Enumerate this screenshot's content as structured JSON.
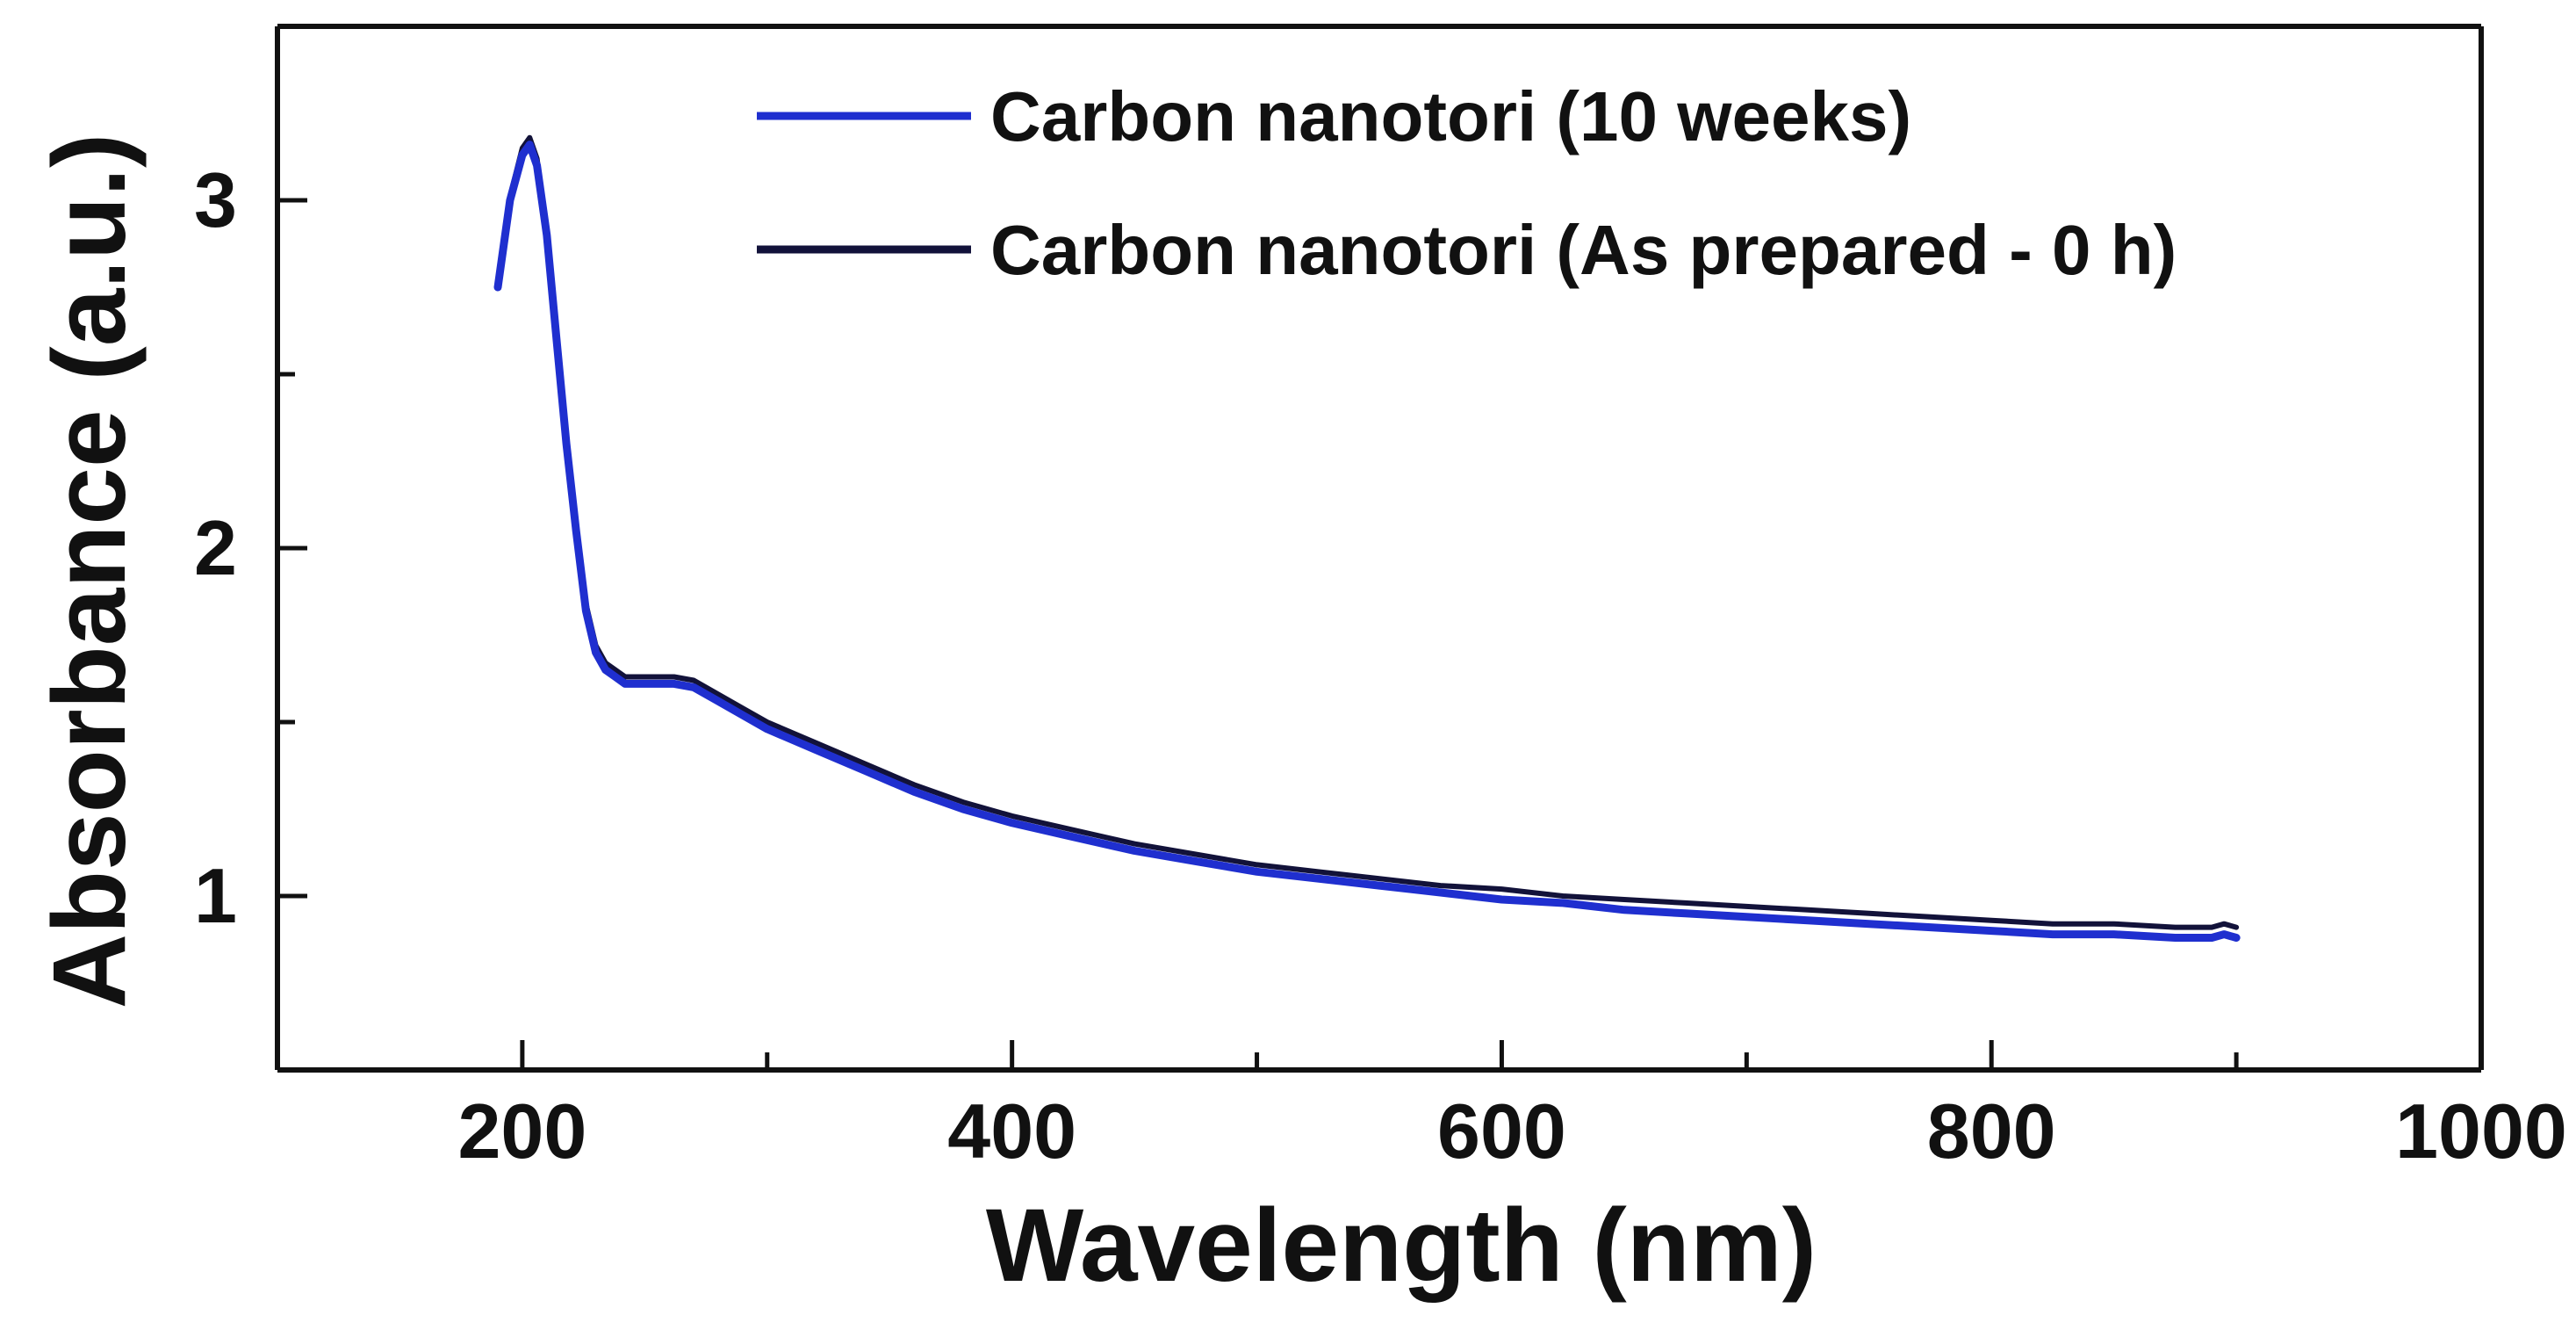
{
  "chart_data": {
    "type": "line",
    "title": "",
    "xlabel": "Wavelength (nm)",
    "ylabel": "Absorbance (a.u.)",
    "xlim": [
      100,
      1000
    ],
    "ylim": [
      0.5,
      3.5
    ],
    "x_ticks": [
      200,
      400,
      600,
      800,
      1000
    ],
    "x_minor_ticks": [
      300,
      500,
      700,
      900
    ],
    "y_ticks": [
      1,
      2,
      3
    ],
    "y_minor_ticks": [
      1.5,
      2.5
    ],
    "grid": false,
    "legend_position": "top-right",
    "series": [
      {
        "name": "Carbon nanotori (10 weeks)",
        "color": "#1f2fcf",
        "x": [
          190,
          195,
          200,
          203,
          206,
          210,
          214,
          218,
          222,
          226,
          230,
          234,
          238,
          242,
          248,
          255,
          262,
          270,
          280,
          290,
          300,
          320,
          340,
          360,
          380,
          400,
          425,
          450,
          475,
          500,
          525,
          550,
          575,
          600,
          625,
          650,
          675,
          700,
          725,
          750,
          775,
          800,
          825,
          850,
          875,
          890,
          895,
          900
        ],
        "y": [
          2.75,
          3.0,
          3.13,
          3.16,
          3.1,
          2.9,
          2.6,
          2.3,
          2.05,
          1.82,
          1.7,
          1.65,
          1.63,
          1.61,
          1.61,
          1.61,
          1.61,
          1.6,
          1.56,
          1.52,
          1.48,
          1.42,
          1.36,
          1.3,
          1.25,
          1.21,
          1.17,
          1.13,
          1.1,
          1.07,
          1.05,
          1.03,
          1.01,
          0.99,
          0.98,
          0.96,
          0.95,
          0.94,
          0.93,
          0.92,
          0.91,
          0.9,
          0.89,
          0.89,
          0.88,
          0.88,
          0.89,
          0.88
        ]
      },
      {
        "name": "Carbon nanotori (As prepared - 0 h)",
        "color": "#12123a",
        "x": [
          190,
          195,
          200,
          203,
          206,
          210,
          214,
          218,
          222,
          226,
          230,
          234,
          238,
          242,
          248,
          255,
          262,
          270,
          280,
          290,
          300,
          320,
          340,
          360,
          380,
          400,
          425,
          450,
          475,
          500,
          525,
          550,
          575,
          600,
          625,
          650,
          675,
          700,
          725,
          750,
          775,
          800,
          825,
          850,
          875,
          890,
          895,
          900
        ],
        "y": [
          2.76,
          3.01,
          3.15,
          3.18,
          3.12,
          2.92,
          2.62,
          2.32,
          2.07,
          1.84,
          1.72,
          1.67,
          1.65,
          1.63,
          1.63,
          1.63,
          1.63,
          1.62,
          1.58,
          1.54,
          1.5,
          1.44,
          1.38,
          1.32,
          1.27,
          1.23,
          1.19,
          1.15,
          1.12,
          1.09,
          1.07,
          1.05,
          1.03,
          1.02,
          1.0,
          0.99,
          0.98,
          0.97,
          0.96,
          0.95,
          0.94,
          0.93,
          0.92,
          0.92,
          0.91,
          0.91,
          0.92,
          0.91
        ]
      }
    ]
  }
}
